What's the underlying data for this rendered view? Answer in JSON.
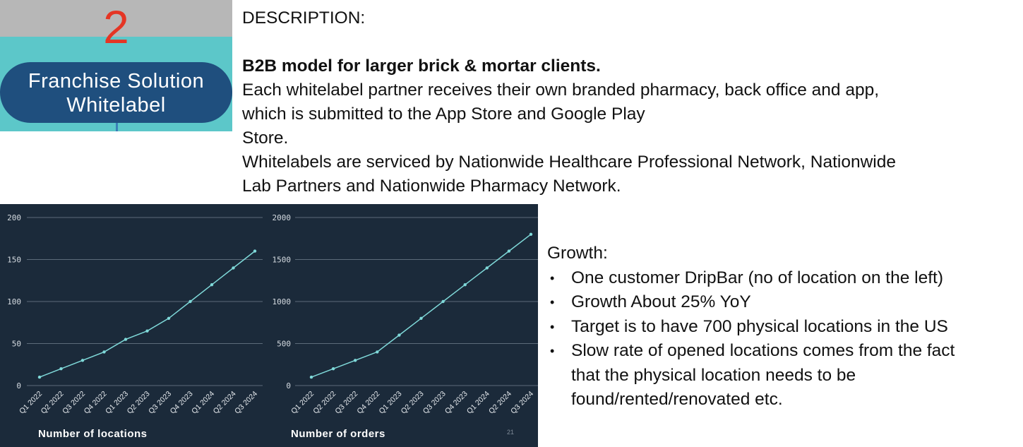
{
  "badge": {
    "number": "2",
    "line1": "Franchise Solution",
    "line2": "Whitelabel"
  },
  "description": {
    "heading": "DESCRIPTION:",
    "bold_line": "B2B model for larger brick & mortar clients.",
    "line_a": "Each whitelabel partner receives their own branded pharmacy, back office and app,",
    "line_b": "which is submitted to the App Store and Google Play",
    "line_c": "Store.",
    "line_d": "Whitelabels are serviced by Nationwide Healthcare Professional Network, Nationwide",
    "line_e": "Lab Partners and Nationwide Pharmacy Network."
  },
  "growth": {
    "title": "Growth:",
    "bullets": [
      "One customer DripBar (no of location on the left)",
      "Growth About 25% YoY",
      "Target is to have 700 physical locations in the US",
      "Slow rate of opened locations comes from the fact that the physical location needs to be found/rented/renovated etc."
    ],
    "bullet_4_lines": [
      "Slow rate of opened locations comes from the fact",
      "that the physical location needs to be",
      "found/rented/renovated etc."
    ]
  },
  "page_number": "21",
  "colors": {
    "panel_bg": "#1b2a3a",
    "line": "#7fd9d9",
    "badge_bg": "#5cc7c9",
    "pill": "#1f4f7e",
    "number": "#e53524"
  },
  "chart_data": [
    {
      "type": "line",
      "title": "Number of locations",
      "categories": [
        "Q1 2022",
        "Q2 2022",
        "Q3 2022",
        "Q4 2022",
        "Q1 2023",
        "Q2 2023",
        "Q3 2023",
        "Q4 2023",
        "Q1 2024",
        "Q2 2024",
        "Q3 2024"
      ],
      "series": [
        {
          "values": [
            10,
            20,
            30,
            40,
            55,
            65,
            80,
            100,
            120,
            140,
            160
          ]
        }
      ],
      "yticks": [
        0,
        50,
        100,
        150,
        200
      ],
      "ylim": [
        0,
        200
      ],
      "grid": true
    },
    {
      "type": "line",
      "title": "Number of orders",
      "categories": [
        "Q1 2022",
        "Q2 2022",
        "Q3 2022",
        "Q4 2022",
        "Q1 2023",
        "Q2 2023",
        "Q3 2023",
        "Q4 2023",
        "Q1 2024",
        "Q2 2024",
        "Q3 2024"
      ],
      "series": [
        {
          "values": [
            100,
            200,
            300,
            400,
            600,
            800,
            1000,
            1200,
            1400,
            1600,
            1800
          ]
        }
      ],
      "yticks": [
        0,
        500,
        1000,
        1500,
        2000
      ],
      "ylim": [
        0,
        2000
      ],
      "grid": true
    }
  ]
}
